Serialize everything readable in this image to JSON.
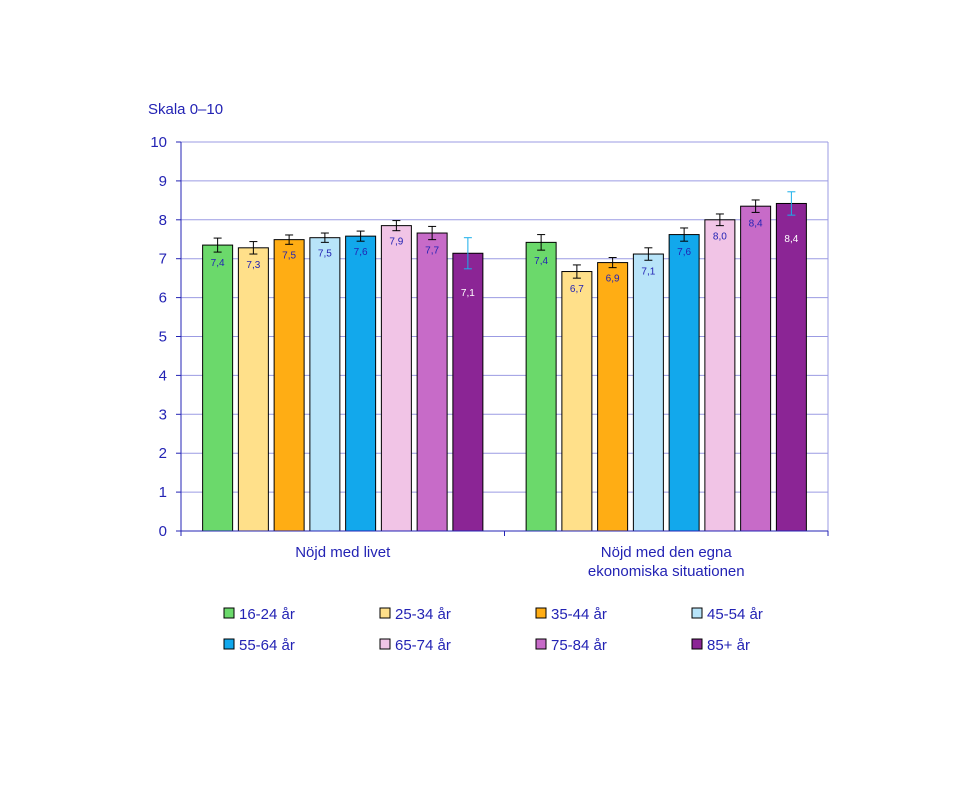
{
  "chart_data": {
    "type": "bar",
    "y_unit_label": "Skala 0–10",
    "ylim": [
      0,
      10
    ],
    "y_ticks": [
      "0",
      "1",
      "2",
      "3",
      "4",
      "5",
      "6",
      "7",
      "8",
      "9",
      "10"
    ],
    "grid": true,
    "legend_position": "bottom",
    "categories": [
      {
        "lines": [
          "Nöjd med livet"
        ]
      },
      {
        "lines": [
          "Nöjd med den egna",
          "ekonomiska situationen"
        ]
      }
    ],
    "series": [
      {
        "name": "16-24 år",
        "color": "#6bd96b",
        "label_color": "#2323b4",
        "values": [
          7.35,
          7.42
        ],
        "labels": [
          "7,4",
          "7,4"
        ],
        "err": [
          0.18,
          0.2
        ]
      },
      {
        "name": "25-34 år",
        "color": "#ffe08a",
        "label_color": "#2323b4",
        "values": [
          7.28,
          6.67
        ],
        "labels": [
          "7,3",
          "6,7"
        ],
        "err": [
          0.16,
          0.17
        ]
      },
      {
        "name": "35-44 år",
        "color": "#ffad14",
        "label_color": "#2323b4",
        "values": [
          7.49,
          6.9
        ],
        "labels": [
          "7,5",
          "6,9"
        ],
        "err": [
          0.12,
          0.13
        ]
      },
      {
        "name": "45-54 år",
        "color": "#b8e4f9",
        "label_color": "#2323b4",
        "values": [
          7.54,
          7.12
        ],
        "labels": [
          "7,5",
          "7,1"
        ],
        "err": [
          0.12,
          0.16
        ]
      },
      {
        "name": "55-64 år",
        "color": "#12a8ec",
        "label_color": "#2323b4",
        "values": [
          7.58,
          7.62
        ],
        "labels": [
          "7,6",
          "7,6"
        ],
        "err": [
          0.13,
          0.17
        ]
      },
      {
        "name": "65-74 år",
        "color": "#f1c4e6",
        "label_color": "#2323b4",
        "values": [
          7.85,
          8.0
        ],
        "labels": [
          "7,9",
          "8,0"
        ],
        "err": [
          0.13,
          0.15
        ]
      },
      {
        "name": "75-84 år",
        "color": "#c76bc8",
        "label_color": "#2323b4",
        "values": [
          7.66,
          8.35
        ],
        "labels": [
          "7,7",
          "8,4"
        ],
        "err": [
          0.17,
          0.16
        ]
      },
      {
        "name": "85+ år",
        "color": "#8b2595",
        "label_color": "#ffffff",
        "values": [
          7.14,
          8.42
        ],
        "labels": [
          "7,1",
          "8,4"
        ],
        "err": [
          0.4,
          0.3
        ],
        "err_color": "#19aeea"
      }
    ]
  }
}
